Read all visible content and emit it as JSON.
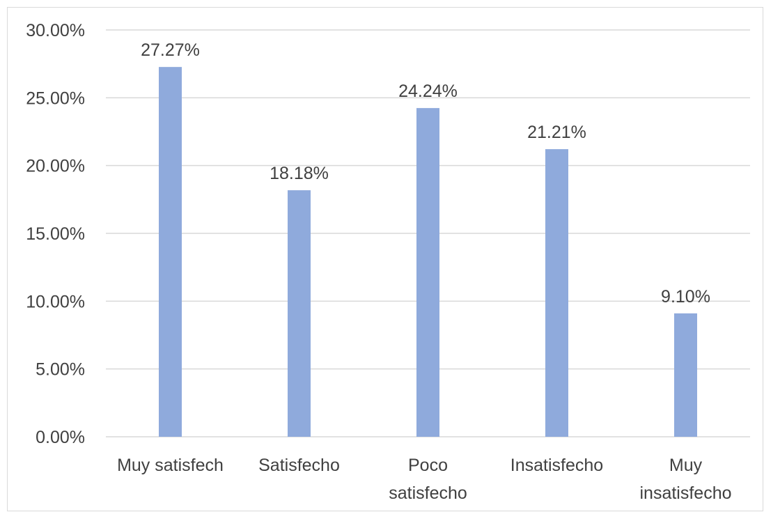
{
  "chart_data": {
    "type": "bar",
    "categories": [
      [
        "Muy satisfech"
      ],
      [
        "Satisfecho"
      ],
      [
        "Poco",
        "satisfecho"
      ],
      [
        "Insatisfecho"
      ],
      [
        "Muy",
        "insatisfecho"
      ]
    ],
    "values": [
      27.27,
      18.18,
      24.24,
      21.21,
      9.1
    ],
    "data_labels": [
      "27.27%",
      "18.18%",
      "24.24%",
      "21.21%",
      "9.10%"
    ],
    "title": "",
    "xlabel": "",
    "ylabel": "",
    "ylim": [
      0,
      30
    ],
    "yticks": [
      "0.00%",
      "5.00%",
      "10.00%",
      "15.00%",
      "20.00%",
      "25.00%",
      "30.00%"
    ],
    "ytick_values": [
      0,
      5,
      10,
      15,
      20,
      25,
      30
    ],
    "grid": true,
    "legend": "none",
    "colors": {
      "bar": "#8faadc",
      "grid": "#d9d9d9",
      "text": "#404040",
      "border": "#d9d9d9"
    }
  }
}
